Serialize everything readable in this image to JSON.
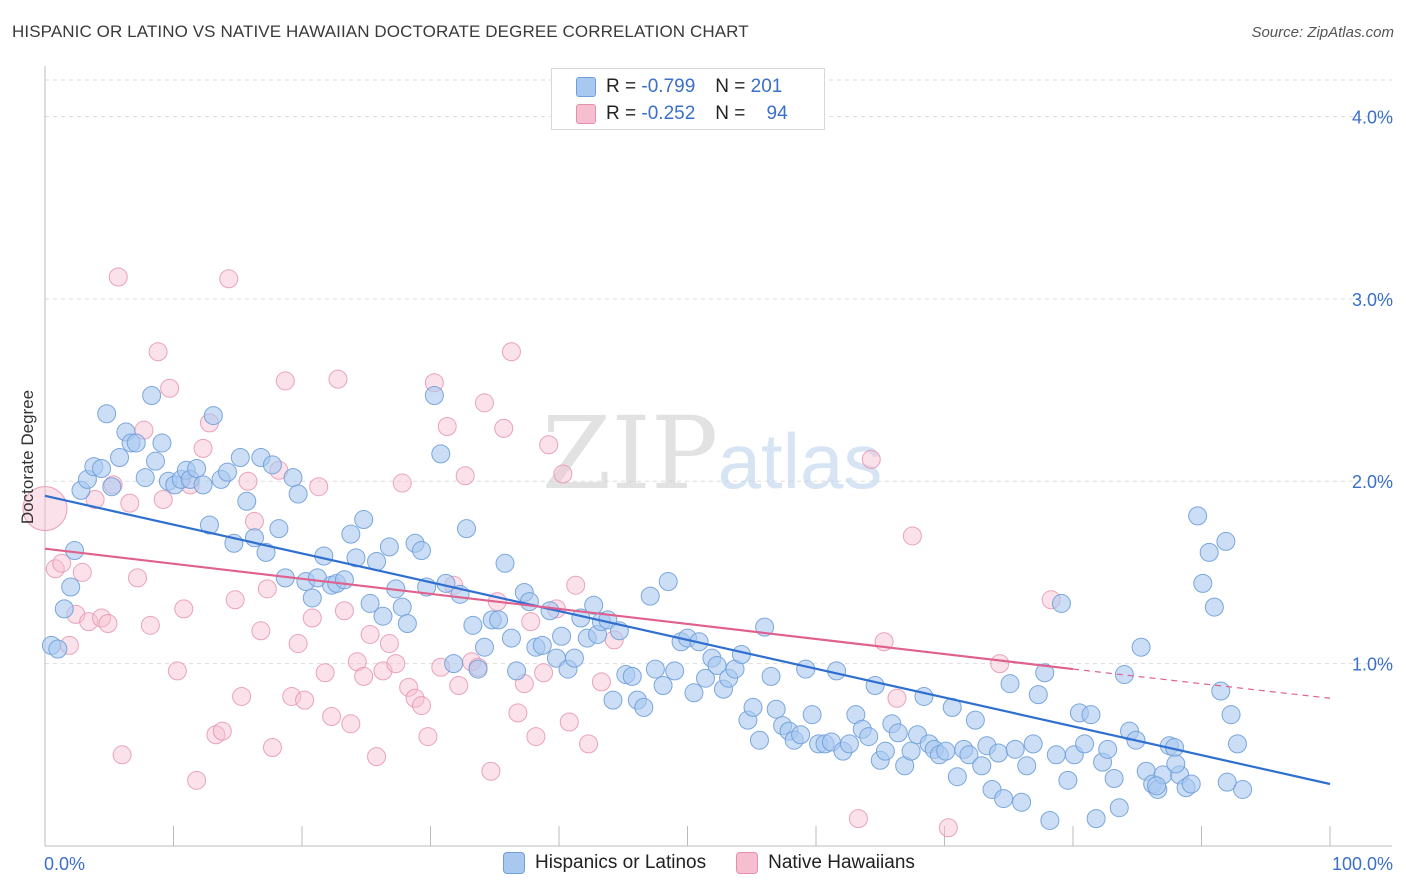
{
  "header": {
    "title": "HISPANIC OR LATINO VS NATIVE HAWAIIAN DOCTORATE DEGREE CORRELATION CHART",
    "source": "Source: ZipAtlas.com"
  },
  "legend": {
    "rows": [
      {
        "r_label": "R =",
        "r_value": "-0.799",
        "n_label": "N =",
        "n_value": "201"
      },
      {
        "r_label": "R =",
        "r_value": "-0.252",
        "n_label": "N =",
        "n_value": "94"
      }
    ]
  },
  "bottom_legend": [
    "Hispanics or Latinos",
    "Native Hawaiians"
  ],
  "watermark": {
    "zip": "ZIP",
    "atlas": "atlas"
  },
  "colors": {
    "blue_fill": "#a9c8f0",
    "blue_stroke": "#6f9fd8",
    "blue_line": "#2f6fd0",
    "pink_fill": "#f6bfd0",
    "pink_stroke": "#e58fae",
    "pink_line": "#e0608e",
    "grid": "#dddddd",
    "tick_label": "#3b6fc9"
  },
  "chart_data": {
    "type": "scatter",
    "title": "HISPANIC OR LATINO VS NATIVE HAWAIIAN DOCTORATE DEGREE CORRELATION CHART",
    "xlabel": "",
    "ylabel": "Doctorate Degree",
    "xlim": [
      0,
      100
    ],
    "ylim": [
      0,
      4.2
    ],
    "x_tick_labels": [
      "0.0%",
      "100.0%"
    ],
    "y_ticks": [
      1.0,
      2.0,
      3.0,
      4.0
    ],
    "y_tick_labels": [
      "1.0%",
      "2.0%",
      "3.0%",
      "4.0%"
    ],
    "grid": "horizontal dashed",
    "legend_placement": "top-center",
    "series": [
      {
        "name": "Hispanics or Latinos",
        "R": -0.799,
        "N": 201,
        "trend": {
          "x": [
            0,
            100
          ],
          "y": [
            1.92,
            0.34
          ]
        },
        "points": [
          [
            0.5,
            1.1
          ],
          [
            1,
            1.08
          ],
          [
            1.5,
            1.3
          ],
          [
            2,
            1.42
          ],
          [
            2.3,
            1.62
          ],
          [
            2.8,
            1.95
          ],
          [
            3.3,
            2.01
          ],
          [
            3.8,
            2.08
          ],
          [
            4.4,
            2.07
          ],
          [
            4.8,
            2.37
          ],
          [
            5.2,
            1.97
          ],
          [
            5.8,
            2.13
          ],
          [
            6.3,
            2.27
          ],
          [
            6.7,
            2.21
          ],
          [
            7.1,
            2.21
          ],
          [
            7.8,
            2.02
          ],
          [
            8.3,
            2.47
          ],
          [
            8.6,
            2.11
          ],
          [
            9.1,
            2.21
          ],
          [
            9.6,
            2.0
          ],
          [
            10.1,
            1.98
          ],
          [
            10.6,
            2.01
          ],
          [
            11,
            2.06
          ],
          [
            11.3,
            2.01
          ],
          [
            11.8,
            2.07
          ],
          [
            12.3,
            1.98
          ],
          [
            12.8,
            1.76
          ],
          [
            13.1,
            2.36
          ],
          [
            13.7,
            2.01
          ],
          [
            14.2,
            2.05
          ],
          [
            14.7,
            1.66
          ],
          [
            15.2,
            2.13
          ],
          [
            15.7,
            1.89
          ],
          [
            16.3,
            1.69
          ],
          [
            16.8,
            2.13
          ],
          [
            17.2,
            1.61
          ],
          [
            17.7,
            2.09
          ],
          [
            18.2,
            1.74
          ],
          [
            18.7,
            1.47
          ],
          [
            19.3,
            2.02
          ],
          [
            19.7,
            1.93
          ],
          [
            20.3,
            1.45
          ],
          [
            20.8,
            1.36
          ],
          [
            21.2,
            1.47
          ],
          [
            21.7,
            1.59
          ],
          [
            22.3,
            1.43
          ],
          [
            22.7,
            1.44
          ],
          [
            23.3,
            1.46
          ],
          [
            23.8,
            1.71
          ],
          [
            24.2,
            1.58
          ],
          [
            24.8,
            1.79
          ],
          [
            25.3,
            1.33
          ],
          [
            25.8,
            1.56
          ],
          [
            26.3,
            1.26
          ],
          [
            26.8,
            1.64
          ],
          [
            27.3,
            1.41
          ],
          [
            27.8,
            1.31
          ],
          [
            28.2,
            1.22
          ],
          [
            28.8,
            1.66
          ],
          [
            29.3,
            1.62
          ],
          [
            29.7,
            1.42
          ],
          [
            30.3,
            2.47
          ],
          [
            30.8,
            2.15
          ],
          [
            31.2,
            1.44
          ],
          [
            31.8,
            1.0
          ],
          [
            32.3,
            1.38
          ],
          [
            32.8,
            1.74
          ],
          [
            33.3,
            1.21
          ],
          [
            33.7,
            0.97
          ],
          [
            34.2,
            1.09
          ],
          [
            34.8,
            1.24
          ],
          [
            35.3,
            1.24
          ],
          [
            35.8,
            1.55
          ],
          [
            36.3,
            1.14
          ],
          [
            36.7,
            0.96
          ],
          [
            37.3,
            1.39
          ],
          [
            37.7,
            1.34
          ],
          [
            38.2,
            1.09
          ],
          [
            38.7,
            1.1
          ],
          [
            39.3,
            1.29
          ],
          [
            39.8,
            1.03
          ],
          [
            40.2,
            1.15
          ],
          [
            40.7,
            0.97
          ],
          [
            41.2,
            1.03
          ],
          [
            41.7,
            1.25
          ],
          [
            42.2,
            1.14
          ],
          [
            42.7,
            1.32
          ],
          [
            43,
            1.16
          ],
          [
            43.3,
            1.23
          ],
          [
            43.8,
            1.24
          ],
          [
            44.2,
            0.8
          ],
          [
            44.7,
            1.18
          ],
          [
            45.2,
            0.94
          ],
          [
            45.7,
            0.93
          ],
          [
            46.1,
            0.8
          ],
          [
            46.6,
            0.76
          ],
          [
            47.1,
            1.37
          ],
          [
            47.5,
            0.97
          ],
          [
            48.1,
            0.88
          ],
          [
            48.5,
            1.45
          ],
          [
            49,
            0.96
          ],
          [
            49.5,
            1.12
          ],
          [
            50,
            1.14
          ],
          [
            50.5,
            0.84
          ],
          [
            50.9,
            1.12
          ],
          [
            51.4,
            0.92
          ],
          [
            51.9,
            1.03
          ],
          [
            52.3,
            0.99
          ],
          [
            52.8,
            0.86
          ],
          [
            53.2,
            0.92
          ],
          [
            53.7,
            0.97
          ],
          [
            54.2,
            1.05
          ],
          [
            54.7,
            0.69
          ],
          [
            55.1,
            0.76
          ],
          [
            55.6,
            0.58
          ],
          [
            56,
            1.2
          ],
          [
            56.5,
            0.93
          ],
          [
            56.9,
            0.75
          ],
          [
            57.4,
            0.66
          ],
          [
            57.9,
            0.63
          ],
          [
            58.3,
            0.58
          ],
          [
            58.8,
            0.61
          ],
          [
            59.2,
            0.97
          ],
          [
            59.7,
            0.72
          ],
          [
            60.2,
            0.56
          ],
          [
            60.7,
            0.56
          ],
          [
            61.2,
            0.57
          ],
          [
            61.6,
            0.96
          ],
          [
            62.1,
            0.52
          ],
          [
            62.6,
            0.56
          ],
          [
            63.1,
            0.72
          ],
          [
            63.6,
            0.64
          ],
          [
            64.1,
            0.6
          ],
          [
            64.6,
            0.88
          ],
          [
            65,
            0.47
          ],
          [
            65.4,
            0.52
          ],
          [
            65.9,
            0.67
          ],
          [
            66.4,
            0.62
          ],
          [
            66.9,
            0.44
          ],
          [
            67.4,
            0.52
          ],
          [
            67.9,
            0.61
          ],
          [
            68.4,
            0.82
          ],
          [
            68.8,
            0.56
          ],
          [
            69.2,
            0.53
          ],
          [
            69.6,
            0.5
          ],
          [
            70.1,
            0.52
          ],
          [
            70.6,
            0.76
          ],
          [
            71,
            0.38
          ],
          [
            71.5,
            0.53
          ],
          [
            71.9,
            0.5
          ],
          [
            72.4,
            0.69
          ],
          [
            72.9,
            0.44
          ],
          [
            73.3,
            0.55
          ],
          [
            73.7,
            0.31
          ],
          [
            74.2,
            0.51
          ],
          [
            74.6,
            0.26
          ],
          [
            75.1,
            0.89
          ],
          [
            75.5,
            0.53
          ],
          [
            76,
            0.24
          ],
          [
            76.4,
            0.44
          ],
          [
            76.9,
            0.56
          ],
          [
            77.3,
            0.83
          ],
          [
            77.8,
            0.95
          ],
          [
            78.2,
            0.14
          ],
          [
            78.7,
            0.5
          ],
          [
            79.1,
            1.33
          ],
          [
            79.6,
            0.36
          ],
          [
            80.1,
            0.5
          ],
          [
            80.5,
            0.73
          ],
          [
            80.9,
            0.56
          ],
          [
            81.4,
            0.72
          ],
          [
            81.8,
            0.15
          ],
          [
            82.3,
            0.46
          ],
          [
            82.7,
            0.53
          ],
          [
            83.2,
            0.37
          ],
          [
            83.6,
            0.21
          ],
          [
            84,
            0.94
          ],
          [
            84.4,
            0.63
          ],
          [
            84.9,
            0.58
          ],
          [
            85.3,
            1.09
          ],
          [
            85.7,
            0.41
          ],
          [
            86.2,
            0.34
          ],
          [
            86.6,
            0.31
          ],
          [
            87,
            0.39
          ],
          [
            87.5,
            0.55
          ],
          [
            87.9,
            0.54
          ],
          [
            88.3,
            0.39
          ],
          [
            88.8,
            0.32
          ],
          [
            89.2,
            0.34
          ],
          [
            89.7,
            1.81
          ],
          [
            90.1,
            1.44
          ],
          [
            90.6,
            1.61
          ],
          [
            91,
            1.31
          ],
          [
            91.5,
            0.85
          ],
          [
            91.9,
            1.67
          ],
          [
            92.3,
            0.72
          ],
          [
            92.8,
            0.56
          ],
          [
            93.2,
            0.31
          ],
          [
            92,
            0.35
          ],
          [
            88,
            0.45
          ],
          [
            86.5,
            0.33
          ]
        ]
      },
      {
        "name": "Native Hawaiians",
        "R": -0.252,
        "N": 94,
        "trend": {
          "x": [
            0,
            80
          ],
          "y": [
            1.63,
            0.97
          ]
        },
        "trend_dashed": {
          "x": [
            80,
            100
          ],
          "y": [
            0.97,
            0.81
          ]
        },
        "points": [
          [
            0,
            1.85
          ],
          [
            0.8,
            1.52
          ],
          [
            1.3,
            1.55
          ],
          [
            1.9,
            1.1
          ],
          [
            2.4,
            1.27
          ],
          [
            2.9,
            1.5
          ],
          [
            3.4,
            1.23
          ],
          [
            3.9,
            1.9
          ],
          [
            4.4,
            1.25
          ],
          [
            4.9,
            1.22
          ],
          [
            5.3,
            1.98
          ],
          [
            5.7,
            3.12
          ],
          [
            6,
            0.5
          ],
          [
            6.6,
            1.88
          ],
          [
            7.2,
            1.47
          ],
          [
            7.7,
            2.28
          ],
          [
            8.2,
            1.21
          ],
          [
            8.8,
            2.71
          ],
          [
            9.2,
            1.9
          ],
          [
            9.7,
            2.51
          ],
          [
            10.3,
            0.96
          ],
          [
            10.8,
            1.3
          ],
          [
            11.3,
            1.98
          ],
          [
            11.8,
            0.36
          ],
          [
            12.3,
            2.18
          ],
          [
            12.8,
            2.32
          ],
          [
            13.3,
            0.61
          ],
          [
            13.8,
            0.63
          ],
          [
            14.3,
            3.11
          ],
          [
            14.8,
            1.35
          ],
          [
            15.3,
            0.82
          ],
          [
            15.8,
            2.0
          ],
          [
            16.3,
            1.78
          ],
          [
            16.8,
            1.18
          ],
          [
            17.3,
            1.41
          ],
          [
            17.7,
            0.54
          ],
          [
            18.2,
            2.06
          ],
          [
            18.7,
            2.55
          ],
          [
            19.2,
            0.82
          ],
          [
            19.7,
            1.11
          ],
          [
            20.2,
            0.8
          ],
          [
            20.8,
            1.25
          ],
          [
            21.3,
            1.97
          ],
          [
            21.8,
            0.95
          ],
          [
            22.3,
            0.71
          ],
          [
            22.8,
            2.56
          ],
          [
            23.3,
            1.29
          ],
          [
            23.8,
            0.67
          ],
          [
            24.3,
            1.01
          ],
          [
            24.8,
            0.93
          ],
          [
            25.3,
            1.16
          ],
          [
            25.8,
            0.49
          ],
          [
            26.3,
            0.96
          ],
          [
            26.8,
            1.11
          ],
          [
            27.3,
            1.0
          ],
          [
            27.8,
            1.99
          ],
          [
            28.3,
            0.87
          ],
          [
            28.8,
            0.81
          ],
          [
            29.3,
            0.77
          ],
          [
            29.8,
            0.6
          ],
          [
            30.3,
            2.54
          ],
          [
            30.8,
            0.98
          ],
          [
            31.3,
            2.3
          ],
          [
            31.8,
            1.43
          ],
          [
            32.2,
            0.88
          ],
          [
            32.7,
            2.03
          ],
          [
            33.2,
            1.01
          ],
          [
            33.7,
            0.98
          ],
          [
            34.2,
            2.43
          ],
          [
            34.7,
            0.41
          ],
          [
            35.2,
            1.34
          ],
          [
            35.7,
            2.29
          ],
          [
            36.3,
            2.71
          ],
          [
            36.8,
            0.73
          ],
          [
            37.3,
            0.89
          ],
          [
            37.8,
            1.23
          ],
          [
            38.2,
            0.6
          ],
          [
            38.8,
            0.95
          ],
          [
            39.2,
            2.2
          ],
          [
            39.8,
            1.3
          ],
          [
            40.3,
            2.04
          ],
          [
            40.8,
            0.68
          ],
          [
            41.3,
            1.43
          ],
          [
            42.3,
            0.56
          ],
          [
            43.3,
            0.9
          ],
          [
            44.3,
            1.13
          ],
          [
            63.3,
            0.15
          ],
          [
            64.3,
            2.12
          ],
          [
            65.3,
            1.12
          ],
          [
            66.3,
            0.81
          ],
          [
            67.5,
            1.7
          ],
          [
            70.3,
            0.1
          ],
          [
            74.3,
            1.0
          ],
          [
            78.3,
            1.35
          ]
        ]
      }
    ]
  }
}
